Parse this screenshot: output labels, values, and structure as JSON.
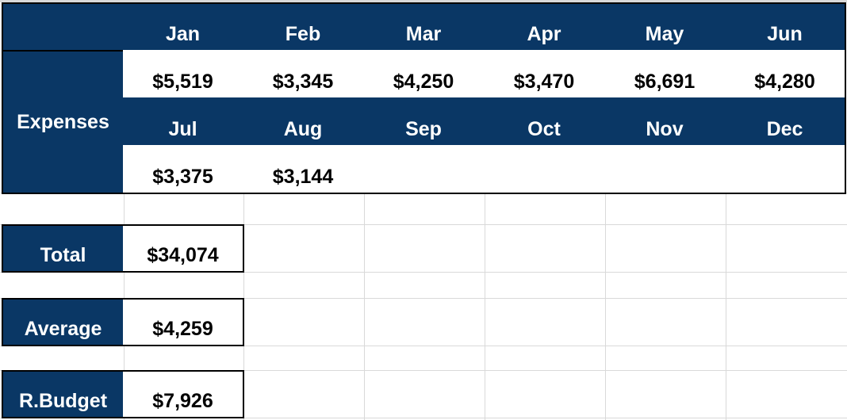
{
  "colors": {
    "header_fill": "#0a3765",
    "header_text": "#ffffff",
    "value_text": "#000000",
    "gridline": "#d9d9d9",
    "border": "#000000"
  },
  "expenses": {
    "label": "Expenses",
    "months_row1": [
      {
        "month": "Jan",
        "value": "$5,519"
      },
      {
        "month": "Feb",
        "value": "$3,345"
      },
      {
        "month": "Mar",
        "value": "$4,250"
      },
      {
        "month": "Apr",
        "value": "$3,470"
      },
      {
        "month": "May",
        "value": "$6,691"
      },
      {
        "month": "Jun",
        "value": "$4,280"
      }
    ],
    "months_row2": [
      {
        "month": "Jul",
        "value": "$3,375"
      },
      {
        "month": "Aug",
        "value": "$3,144"
      },
      {
        "month": "Sep",
        "value": ""
      },
      {
        "month": "Oct",
        "value": ""
      },
      {
        "month": "Nov",
        "value": ""
      },
      {
        "month": "Dec",
        "value": ""
      }
    ]
  },
  "summary": {
    "total": {
      "label": "Total",
      "value": "$34,074"
    },
    "average": {
      "label": "Average",
      "value": "$4,259"
    },
    "remaining_budget": {
      "label": "R.Budget",
      "value": "$7,926"
    }
  }
}
